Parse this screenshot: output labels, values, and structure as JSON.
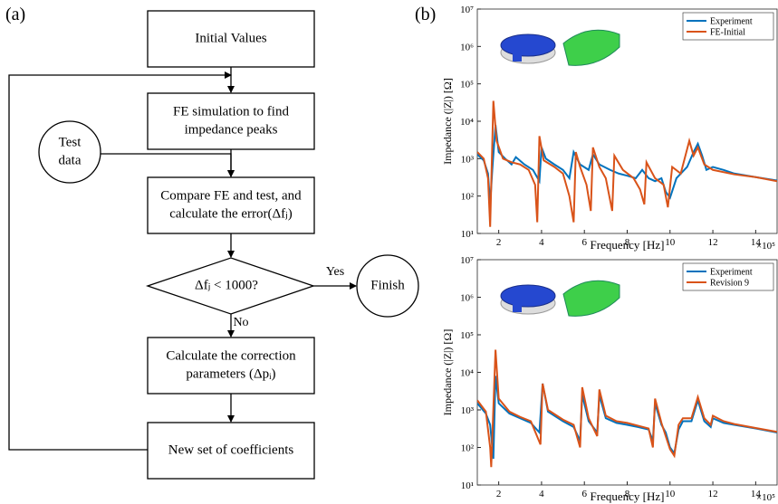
{
  "panel_a": {
    "label": "(a)",
    "nodes": [
      {
        "lines": [
          "Initial Values"
        ]
      },
      {
        "lines": [
          "FE simulation to find",
          "impedance peaks"
        ]
      },
      {
        "lines": [
          "Test",
          "data"
        ]
      },
      {
        "lines": [
          "Compare FE and test, and",
          "calculate the error(Δfⱼ)"
        ]
      },
      {
        "lines": [
          "Δfⱼ < 1000?"
        ]
      },
      {
        "lines": [
          "Finish"
        ]
      },
      {
        "lines": [
          "Calculate the correction",
          "parameters  (Δpᵢ)"
        ]
      },
      {
        "lines": [
          "New set of coefficients"
        ]
      }
    ],
    "edge_labels": [
      "Yes",
      "No"
    ]
  },
  "panel_b": {
    "label": "(b)"
  },
  "chart_data": [
    {
      "type": "line",
      "x_label": "Frequency   [Hz]",
      "y_label": "Impedance (|Z|) [Ω]",
      "x_multiplier": "×10⁵",
      "xlim": [
        1,
        15
      ],
      "ylim": [
        10,
        10000000
      ],
      "log_y": true,
      "legend_position": "upper right",
      "xticks": [
        2,
        4,
        6,
        8,
        10,
        12,
        14
      ],
      "yticks": [
        {
          "value": 10,
          "label": "10¹"
        },
        {
          "value": 100,
          "label": "10²"
        },
        {
          "value": 1000,
          "label": "10³"
        },
        {
          "value": 10000,
          "label": "10⁴"
        },
        {
          "value": 100000,
          "label": "10⁵"
        },
        {
          "value": 1000000,
          "label": "10⁶"
        },
        {
          "value": 10000000,
          "label": "10⁷"
        }
      ],
      "series": [
        {
          "name": "Experiment",
          "color": "#0072bd",
          "x": [
            1.0,
            1.3,
            1.5,
            1.6,
            1.7,
            1.85,
            2.0,
            2.3,
            2.6,
            2.8,
            3.2,
            3.6,
            3.9,
            4.0,
            4.2,
            4.6,
            5.0,
            5.3,
            5.5,
            5.8,
            6.2,
            6.4,
            6.7,
            7.2,
            7.6,
            8.0,
            8.4,
            8.7,
            9.0,
            9.3,
            9.6,
            9.8,
            10.0,
            10.3,
            10.8,
            11.1,
            11.3,
            11.5,
            11.7,
            12.0,
            12.5,
            13,
            14,
            15
          ],
          "values": [
            1300,
            900,
            400,
            60,
            500,
            8000,
            1500,
            1000,
            700,
            1100,
            700,
            500,
            250,
            2000,
            1000,
            700,
            500,
            300,
            1500,
            700,
            500,
            1300,
            700,
            500,
            400,
            350,
            300,
            500,
            300,
            250,
            300,
            130,
            90,
            300,
            600,
            1500,
            2500,
            1200,
            500,
            600,
            500,
            400,
            320,
            260
          ]
        },
        {
          "name": "FE-Initial",
          "color": "#d95319",
          "x": [
            1.0,
            1.3,
            1.5,
            1.6,
            1.75,
            1.9,
            2.2,
            2.6,
            3.0,
            3.4,
            3.7,
            3.8,
            3.9,
            4.1,
            4.6,
            5.0,
            5.3,
            5.5,
            5.6,
            5.8,
            6.1,
            6.3,
            6.4,
            6.7,
            7.0,
            7.3,
            7.4,
            7.8,
            8.3,
            8.6,
            8.8,
            8.9,
            9.3,
            9.7,
            9.9,
            10.1,
            10.5,
            10.9,
            11.1,
            11.3,
            11.6,
            12,
            13,
            14,
            15
          ],
          "values": [
            1500,
            1000,
            300,
            15,
            35000,
            3000,
            1000,
            800,
            700,
            500,
            200,
            20,
            4000,
            900,
            600,
            400,
            100,
            20,
            1500,
            600,
            200,
            40,
            2000,
            600,
            300,
            40,
            1200,
            500,
            300,
            150,
            60,
            800,
            300,
            200,
            50,
            600,
            400,
            3000,
            1200,
            2000,
            700,
            500,
            380,
            320,
            250
          ]
        }
      ]
    },
    {
      "type": "line",
      "x_label": "Frequency   [Hz]",
      "y_label": "Impedance (|Z|) [Ω]",
      "x_multiplier": "×10⁵",
      "xlim": [
        1,
        15
      ],
      "ylim": [
        10,
        10000000
      ],
      "log_y": true,
      "legend_position": "upper right",
      "xticks": [
        2,
        4,
        6,
        8,
        10,
        12,
        14
      ],
      "yticks": [
        {
          "value": 10,
          "label": "10¹"
        },
        {
          "value": 100,
          "label": "10²"
        },
        {
          "value": 1000,
          "label": "10³"
        },
        {
          "value": 10000,
          "label": "10⁴"
        },
        {
          "value": 100000,
          "label": "10⁵"
        },
        {
          "value": 1000000,
          "label": "10⁶"
        },
        {
          "value": 10000000,
          "label": "10⁷"
        }
      ],
      "series": [
        {
          "name": "Experiment",
          "color": "#0072bd",
          "x": [
            1,
            1.4,
            1.6,
            1.75,
            1.85,
            2.0,
            2.5,
            3,
            3.5,
            3.9,
            4.05,
            4.3,
            5,
            5.5,
            5.8,
            5.9,
            6.2,
            6.6,
            6.7,
            7,
            7.5,
            8,
            8.5,
            9,
            9.2,
            9.3,
            9.6,
            9.8,
            10,
            10.2,
            10.4,
            10.6,
            11.0,
            11.3,
            11.6,
            11.9,
            12.0,
            12.5,
            13,
            14,
            15
          ],
          "values": [
            1500,
            800,
            400,
            50,
            8000,
            1500,
            800,
            600,
            450,
            250,
            5000,
            900,
            500,
            350,
            150,
            2500,
            500,
            250,
            2500,
            600,
            450,
            400,
            350,
            300,
            150,
            1500,
            400,
            250,
            100,
            70,
            300,
            500,
            500,
            1800,
            500,
            350,
            600,
            450,
            400,
            320,
            250
          ]
        },
        {
          "name": "Revision 9",
          "color": "#d95319",
          "x": [
            1,
            1.4,
            1.6,
            1.65,
            1.85,
            2.0,
            2.5,
            3,
            3.5,
            3.95,
            4.05,
            4.3,
            5,
            5.5,
            5.8,
            5.9,
            6.2,
            6.6,
            6.7,
            7,
            7.5,
            8,
            8.5,
            9,
            9.2,
            9.3,
            9.6,
            9.8,
            10,
            10.2,
            10.4,
            10.6,
            11,
            11.3,
            11.6,
            11.9,
            12,
            12.5,
            13,
            14,
            15
          ],
          "values": [
            1800,
            900,
            100,
            30,
            40000,
            2000,
            900,
            650,
            500,
            120,
            5000,
            1000,
            550,
            400,
            100,
            4000,
            600,
            200,
            3500,
            700,
            500,
            450,
            380,
            320,
            100,
            2000,
            450,
            200,
            90,
            60,
            400,
            600,
            600,
            2200,
            600,
            400,
            700,
            500,
            420,
            330,
            260
          ]
        }
      ]
    }
  ]
}
